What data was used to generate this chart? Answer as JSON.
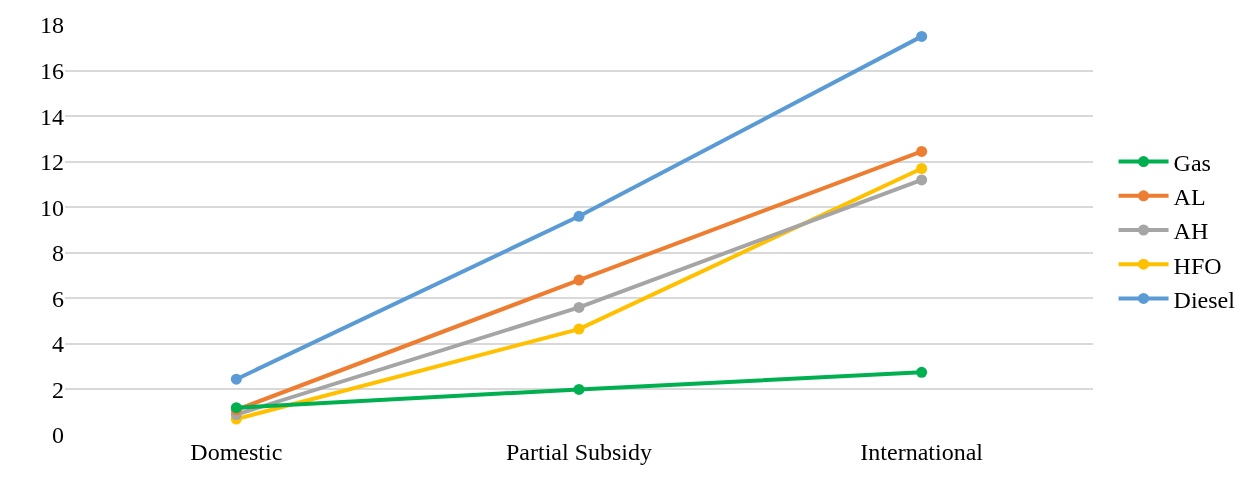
{
  "chart_data": {
    "type": "line",
    "categories": [
      "Domestic",
      "Partial Subsidy",
      "International"
    ],
    "series": [
      {
        "name": "Gas",
        "color": "#00b050",
        "values": [
          1.2,
          2.0,
          2.75
        ]
      },
      {
        "name": "AL",
        "color": "#ed7d31",
        "values": [
          1.1,
          6.8,
          12.45
        ]
      },
      {
        "name": "AH",
        "color": "#a5a5a5",
        "values": [
          0.9,
          5.6,
          11.2
        ]
      },
      {
        "name": "HFO",
        "color": "#ffc000",
        "values": [
          0.7,
          4.65,
          11.7
        ]
      },
      {
        "name": "Diesel",
        "color": "#5b9bd5",
        "values": [
          2.45,
          9.6,
          17.5
        ]
      }
    ],
    "ylim": [
      0,
      18
    ],
    "yticks": [
      0,
      2,
      4,
      6,
      8,
      10,
      12,
      14,
      16,
      18
    ],
    "grid": "y",
    "legend": "right",
    "marker": "circle",
    "line_style": "solid"
  }
}
